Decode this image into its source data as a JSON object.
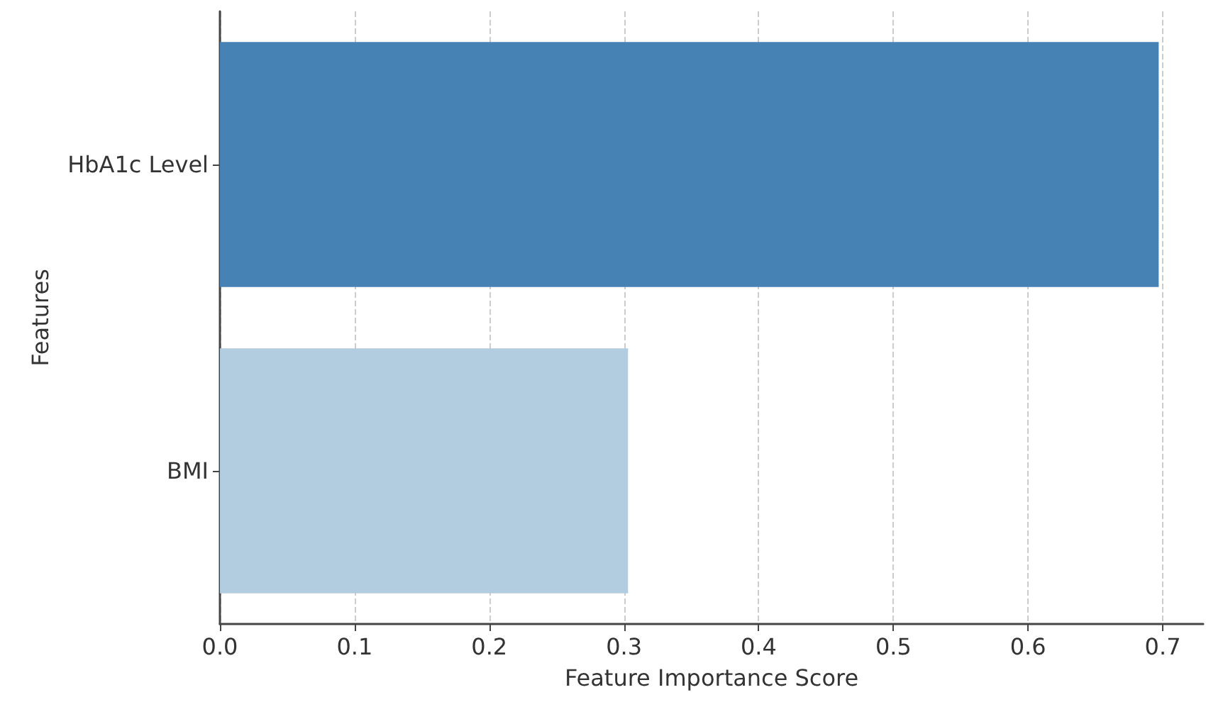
{
  "chart_data": {
    "type": "bar",
    "orientation": "horizontal",
    "xlabel": "Feature Importance Score",
    "ylabel": "Features",
    "categories": [
      "HbA1c Level",
      "BMI"
    ],
    "values": [
      0.697,
      0.303
    ],
    "colors": [
      "#4682b4",
      "#b3cde0"
    ],
    "xlim": [
      0,
      0.73
    ],
    "xticks": [
      {
        "value": 0,
        "label": "0.0"
      },
      0.1,
      0.2,
      0.3,
      0.4,
      0.5,
      0.6,
      0.7
    ],
    "grid": "x"
  }
}
